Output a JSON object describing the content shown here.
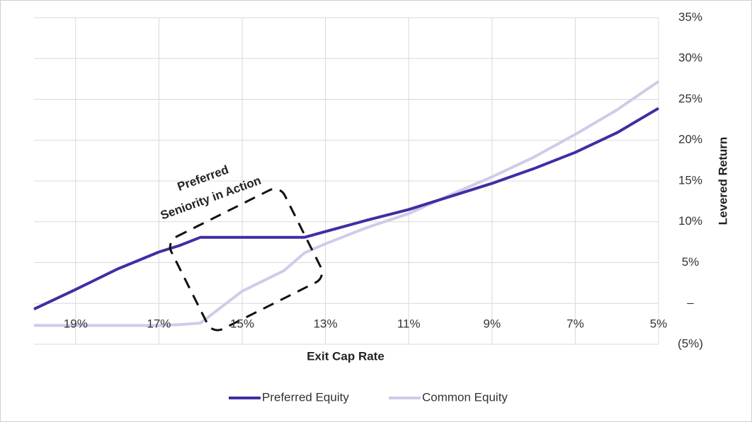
{
  "chart_data": {
    "type": "line",
    "x_label": "Exit Cap Rate",
    "y_label": "Levered Return",
    "annotation": [
      "Preferred",
      "Seniority in Action"
    ],
    "x": [
      20,
      19,
      18,
      17,
      16.5,
      16,
      15,
      14,
      13.5,
      13,
      12,
      11,
      10,
      9,
      8,
      7,
      6,
      5
    ],
    "xlim": [
      20,
      5
    ],
    "xticks": [
      {
        "value": 19,
        "label": "19%"
      },
      {
        "value": 17,
        "label": "17%"
      },
      {
        "value": 15,
        "label": "15%"
      },
      {
        "value": 13,
        "label": "13%"
      },
      {
        "value": 11,
        "label": "11%"
      },
      {
        "value": 9,
        "label": "9%"
      },
      {
        "value": 7,
        "label": "7%"
      },
      {
        "value": 5,
        "label": "5%"
      }
    ],
    "ylim": [
      -5,
      35
    ],
    "yticks": [
      {
        "value": -5,
        "label": "(5%)"
      },
      {
        "value": 0,
        "label": "–"
      },
      {
        "value": 5,
        "label": "5%"
      },
      {
        "value": 10,
        "label": "10%"
      },
      {
        "value": 15,
        "label": "15%"
      },
      {
        "value": 20,
        "label": "20%"
      },
      {
        "value": 25,
        "label": "25%"
      },
      {
        "value": 30,
        "label": "30%"
      },
      {
        "value": 35,
        "label": "35%"
      }
    ],
    "grid": true,
    "legend": "bottom",
    "series": [
      {
        "name": "Preferred Equity",
        "color": "#3f2ea3",
        "values": [
          -0.7,
          1.7,
          4.2,
          6.3,
          7.1,
          8.1,
          8.1,
          8.1,
          8.1,
          8.8,
          10.2,
          11.5,
          13.1,
          14.7,
          16.5,
          18.5,
          20.9,
          23.9
        ]
      },
      {
        "name": "Common Equity",
        "color": "#cfcbe9",
        "values": [
          -2.7,
          -2.7,
          -2.7,
          -2.7,
          -2.6,
          -2.4,
          1.5,
          4.0,
          6.2,
          7.3,
          9.3,
          11.0,
          13.3,
          15.5,
          17.9,
          20.7,
          23.7,
          27.2
        ]
      }
    ]
  }
}
